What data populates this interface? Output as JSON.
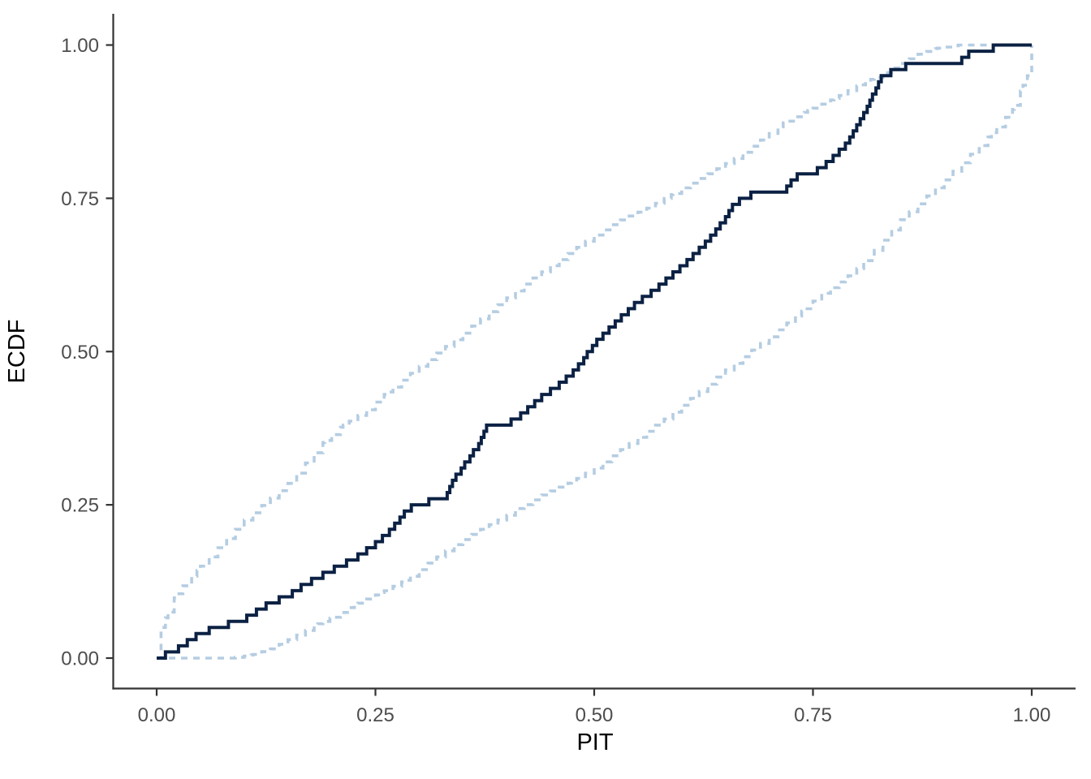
{
  "chart_data": {
    "type": "line",
    "subtype": "pit-ecdf-with-simultaneous-confidence-bands",
    "title": "",
    "xlabel": "PIT",
    "ylabel": "ECDF",
    "xlim": [
      0,
      1
    ],
    "ylim": [
      0,
      1
    ],
    "grid": "off",
    "legend": "none",
    "x_ticks": [
      0.0,
      0.25,
      0.5,
      0.75,
      1.0
    ],
    "x_tick_labels": [
      "0.00",
      "0.25",
      "0.50",
      "0.75",
      "1.00"
    ],
    "y_ticks": [
      0.0,
      0.25,
      0.5,
      0.75,
      1.0
    ],
    "y_tick_labels": [
      "0.00",
      "0.25",
      "0.50",
      "0.75",
      "1.00"
    ],
    "colors": {
      "ecdf_line": "#0b2143",
      "envelope": "#b5cde2",
      "axis_line": "#333333",
      "tick_label": "#4d4d4d",
      "axis_title": "#000000",
      "background": "#ffffff"
    },
    "series": [
      {
        "name": "ecdf",
        "style": "solid-step",
        "n_observations": 100,
        "pit_values_sorted": [
          0.01,
          0.025,
          0.035,
          0.045,
          0.06,
          0.082,
          0.103,
          0.114,
          0.125,
          0.14,
          0.155,
          0.165,
          0.177,
          0.19,
          0.203,
          0.217,
          0.23,
          0.24,
          0.25,
          0.258,
          0.266,
          0.272,
          0.278,
          0.283,
          0.291,
          0.311,
          0.332,
          0.335,
          0.338,
          0.342,
          0.348,
          0.352,
          0.358,
          0.362,
          0.368,
          0.371,
          0.374,
          0.377,
          0.405,
          0.416,
          0.424,
          0.432,
          0.44,
          0.45,
          0.46,
          0.468,
          0.476,
          0.482,
          0.488,
          0.492,
          0.498,
          0.503,
          0.51,
          0.517,
          0.524,
          0.531,
          0.539,
          0.546,
          0.555,
          0.565,
          0.574,
          0.582,
          0.59,
          0.598,
          0.606,
          0.613,
          0.62,
          0.627,
          0.633,
          0.639,
          0.644,
          0.65,
          0.654,
          0.658,
          0.666,
          0.679,
          0.72,
          0.725,
          0.732,
          0.755,
          0.765,
          0.773,
          0.78,
          0.787,
          0.792,
          0.796,
          0.8,
          0.804,
          0.808,
          0.812,
          0.815,
          0.818,
          0.822,
          0.825,
          0.828,
          0.839,
          0.856,
          0.92,
          0.928,
          0.956
        ]
      },
      {
        "name": "envelope_upper",
        "style": "dashed-step",
        "points": [
          [
            0.0,
            0.0
          ],
          [
            0.005,
            0.05
          ],
          [
            0.013,
            0.075
          ],
          [
            0.022,
            0.105
          ],
          [
            0.03,
            0.118
          ],
          [
            0.046,
            0.143
          ],
          [
            0.05,
            0.15
          ],
          [
            0.1,
            0.225
          ],
          [
            0.15,
            0.285
          ],
          [
            0.192,
            0.355
          ],
          [
            0.213,
            0.38
          ],
          [
            0.24,
            0.405
          ],
          [
            0.263,
            0.434
          ],
          [
            0.3,
            0.476
          ],
          [
            0.35,
            0.53
          ],
          [
            0.38,
            0.565
          ],
          [
            0.42,
            0.61
          ],
          [
            0.46,
            0.65
          ],
          [
            0.5,
            0.69
          ],
          [
            0.526,
            0.712
          ],
          [
            0.56,
            0.734
          ],
          [
            0.588,
            0.756
          ],
          [
            0.6,
            0.767
          ],
          [
            0.63,
            0.79
          ],
          [
            0.66,
            0.815
          ],
          [
            0.69,
            0.845
          ],
          [
            0.716,
            0.873
          ],
          [
            0.744,
            0.893
          ],
          [
            0.774,
            0.913
          ],
          [
            0.802,
            0.935
          ],
          [
            0.816,
            0.944
          ],
          [
            0.83,
            0.955
          ],
          [
            0.85,
            0.97
          ],
          [
            0.87,
            0.985
          ],
          [
            0.892,
            0.995
          ],
          [
            0.916,
            1.0
          ],
          [
            1.0,
            1.0
          ]
        ]
      },
      {
        "name": "envelope_lower",
        "style": "dashed-step",
        "points": [
          [
            0.0,
            0.0
          ],
          [
            0.084,
            0.0
          ],
          [
            0.108,
            0.005
          ],
          [
            0.13,
            0.015
          ],
          [
            0.15,
            0.03
          ],
          [
            0.17,
            0.045
          ],
          [
            0.184,
            0.056
          ],
          [
            0.198,
            0.065
          ],
          [
            0.226,
            0.087
          ],
          [
            0.256,
            0.107
          ],
          [
            0.284,
            0.127
          ],
          [
            0.31,
            0.155
          ],
          [
            0.34,
            0.185
          ],
          [
            0.37,
            0.21
          ],
          [
            0.4,
            0.233
          ],
          [
            0.412,
            0.244
          ],
          [
            0.44,
            0.266
          ],
          [
            0.474,
            0.288
          ],
          [
            0.5,
            0.31
          ],
          [
            0.54,
            0.35
          ],
          [
            0.58,
            0.39
          ],
          [
            0.62,
            0.435
          ],
          [
            0.65,
            0.47
          ],
          [
            0.7,
            0.524
          ],
          [
            0.737,
            0.566
          ],
          [
            0.76,
            0.595
          ],
          [
            0.787,
            0.62
          ],
          [
            0.808,
            0.645
          ],
          [
            0.85,
            0.715
          ],
          [
            0.9,
            0.78
          ],
          [
            0.95,
            0.85
          ],
          [
            0.954,
            0.857
          ],
          [
            0.97,
            0.882
          ],
          [
            0.978,
            0.895
          ],
          [
            0.987,
            0.925
          ],
          [
            0.995,
            0.95
          ],
          [
            1.0,
            1.0
          ]
        ]
      }
    ]
  }
}
